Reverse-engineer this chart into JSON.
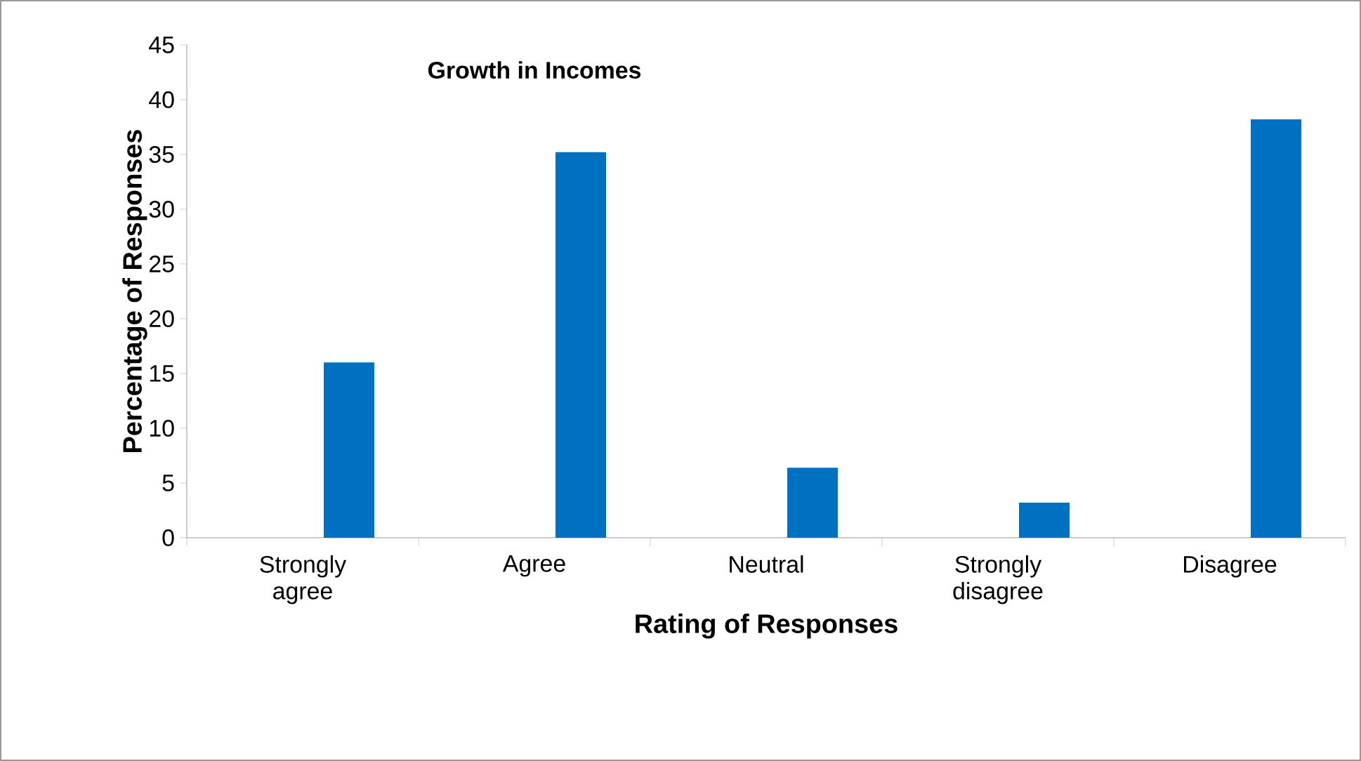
{
  "chart_data": {
    "type": "bar",
    "title": "Growth in Incomes",
    "xlabel": "Rating of Responses",
    "ylabel": "Percentage of Responses",
    "categories": [
      "Strongly agree",
      "Agree",
      "Neutral",
      "Strongly disagree",
      "Disagree"
    ],
    "values": [
      16,
      35.2,
      6.4,
      3.2,
      38.2
    ],
    "color": "#0070c0",
    "ylim": [
      0,
      45
    ],
    "yticks": [
      0,
      5,
      10,
      15,
      20,
      25,
      30,
      35,
      40,
      45
    ],
    "grid": false
  }
}
